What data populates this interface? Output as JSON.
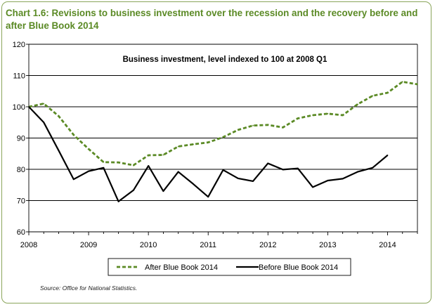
{
  "chart_data": {
    "type": "line",
    "title": "Chart 1.6: Revisions to business investment over the recession and the recovery before and after Blue Book 2014",
    "subtitle": "Business investment, level indexed to 100 at 2008 Q1",
    "xlabel": "",
    "ylabel": "",
    "x_ticks": [
      "2008",
      "2009",
      "2010",
      "2011",
      "2012",
      "2013",
      "2014"
    ],
    "y_ticks": [
      60,
      70,
      80,
      90,
      100,
      110,
      120
    ],
    "ylim": [
      60,
      120
    ],
    "xlim": [
      "2008 Q1",
      "2014 Q3"
    ],
    "grid": "horizontal",
    "legend_position": "bottom",
    "x": [
      "2008 Q1",
      "2008 Q2",
      "2008 Q3",
      "2008 Q4",
      "2009 Q1",
      "2009 Q2",
      "2009 Q3",
      "2009 Q4",
      "2010 Q1",
      "2010 Q2",
      "2010 Q3",
      "2010 Q4",
      "2011 Q1",
      "2011 Q2",
      "2011 Q3",
      "2011 Q4",
      "2012 Q1",
      "2012 Q2",
      "2012 Q3",
      "2012 Q4",
      "2013 Q1",
      "2013 Q2",
      "2013 Q3",
      "2013 Q4",
      "2014 Q1",
      "2014 Q2",
      "2014 Q3"
    ],
    "series": [
      {
        "name": "After Blue Book 2014",
        "color": "#5b8a25",
        "style": "dashed",
        "values": [
          100,
          101,
          97,
          91,
          86.5,
          82.3,
          82.2,
          81.3,
          84.5,
          84.6,
          87.3,
          88,
          88.6,
          90.3,
          92.6,
          94,
          94.2,
          93.4,
          96.3,
          97.3,
          97.8,
          97.3,
          100.8,
          103.5,
          104.5,
          108,
          107.2
        ]
      },
      {
        "name": "Before Blue Book 2014",
        "color": "#000000",
        "style": "solid",
        "values": [
          100,
          95,
          86,
          76.8,
          79.4,
          80.5,
          69.7,
          73.3,
          81.1,
          73,
          79.2,
          75.3,
          71.2,
          79.8,
          77.1,
          76.2,
          81.9,
          79.9,
          80.3,
          74.3,
          76.4,
          77,
          79.2,
          80.5,
          84.5,
          null,
          null
        ]
      }
    ],
    "source": "Source: Office for National Statistics."
  }
}
